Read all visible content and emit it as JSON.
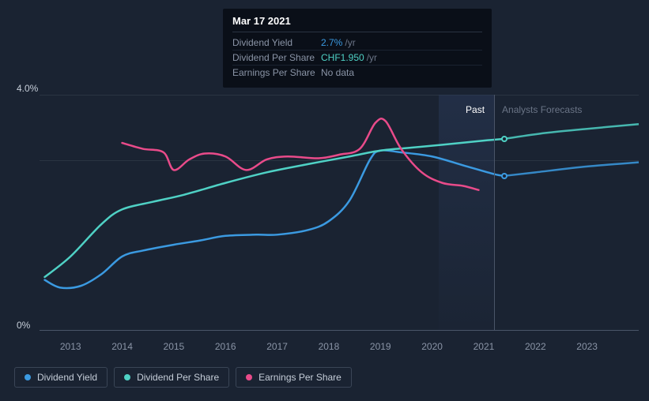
{
  "tooltip": {
    "date": "Mar 17 2021",
    "rows": [
      {
        "label": "Dividend Yield",
        "value": "2.7%",
        "unit": "/yr",
        "color": "#3b9ae1"
      },
      {
        "label": "Dividend Per Share",
        "value": "CHF1.950",
        "unit": "/yr",
        "color": "#4fd1c5"
      },
      {
        "label": "Earnings Per Share",
        "value": "No data",
        "unit": "",
        "color": "#8a94a6"
      }
    ]
  },
  "chart": {
    "type": "line",
    "background_color": "#1a2332",
    "grid_color": "#2a3442",
    "y_axis": {
      "max_label": "4.0%",
      "min_label": "0%",
      "max": 4.0,
      "min": 0
    },
    "x_axis": {
      "ticks": [
        "2013",
        "2014",
        "2015",
        "2016",
        "2017",
        "2018",
        "2019",
        "2020",
        "2021",
        "2022",
        "2023"
      ],
      "min": 2012.4,
      "max": 2024.0
    },
    "divider_x": 2021.2,
    "past_label": "Past",
    "forecast_label": "Analysts Forecasts",
    "past_label_color": "#ffffff",
    "forecast_label_color": "#6a7486",
    "series": [
      {
        "name": "Dividend Yield",
        "color": "#3b9ae1",
        "points": [
          [
            2012.5,
            0.85
          ],
          [
            2012.8,
            0.72
          ],
          [
            2013.2,
            0.75
          ],
          [
            2013.6,
            0.95
          ],
          [
            2014.0,
            1.25
          ],
          [
            2014.4,
            1.35
          ],
          [
            2015.0,
            1.45
          ],
          [
            2015.5,
            1.52
          ],
          [
            2016.0,
            1.6
          ],
          [
            2016.6,
            1.62
          ],
          [
            2017.0,
            1.62
          ],
          [
            2017.6,
            1.7
          ],
          [
            2018.0,
            1.85
          ],
          [
            2018.4,
            2.2
          ],
          [
            2018.8,
            2.9
          ],
          [
            2019.0,
            3.05
          ],
          [
            2019.4,
            3.02
          ],
          [
            2020.0,
            2.95
          ],
          [
            2020.6,
            2.8
          ],
          [
            2021.2,
            2.65
          ],
          [
            2021.4,
            2.62
          ]
        ],
        "marker_at": [
          2021.4,
          2.62
        ],
        "forecast_points": [
          [
            2021.4,
            2.62
          ],
          [
            2022.0,
            2.68
          ],
          [
            2023.0,
            2.78
          ],
          [
            2024.0,
            2.85
          ]
        ]
      },
      {
        "name": "Dividend Per Share",
        "color": "#4fd1c5",
        "points": [
          [
            2012.5,
            0.9
          ],
          [
            2013.0,
            1.25
          ],
          [
            2013.6,
            1.8
          ],
          [
            2014.0,
            2.05
          ],
          [
            2014.6,
            2.18
          ],
          [
            2015.2,
            2.3
          ],
          [
            2016.0,
            2.5
          ],
          [
            2016.8,
            2.68
          ],
          [
            2017.6,
            2.82
          ],
          [
            2018.4,
            2.95
          ],
          [
            2019.0,
            3.05
          ],
          [
            2019.6,
            3.1
          ],
          [
            2020.2,
            3.15
          ],
          [
            2021.0,
            3.22
          ],
          [
            2021.4,
            3.25
          ]
        ],
        "marker_at": [
          2021.4,
          3.25
        ],
        "forecast_points": [
          [
            2021.4,
            3.25
          ],
          [
            2022.2,
            3.35
          ],
          [
            2023.0,
            3.42
          ],
          [
            2024.0,
            3.5
          ]
        ]
      },
      {
        "name": "Earnings Per Share",
        "color": "#e94b8a",
        "points": [
          [
            2014.0,
            3.18
          ],
          [
            2014.4,
            3.08
          ],
          [
            2014.8,
            3.02
          ],
          [
            2015.0,
            2.72
          ],
          [
            2015.3,
            2.9
          ],
          [
            2015.6,
            3.0
          ],
          [
            2016.0,
            2.95
          ],
          [
            2016.4,
            2.72
          ],
          [
            2016.8,
            2.9
          ],
          [
            2017.2,
            2.95
          ],
          [
            2017.8,
            2.92
          ],
          [
            2018.2,
            2.98
          ],
          [
            2018.6,
            3.08
          ],
          [
            2018.9,
            3.52
          ],
          [
            2019.1,
            3.55
          ],
          [
            2019.4,
            3.08
          ],
          [
            2019.8,
            2.68
          ],
          [
            2020.2,
            2.5
          ],
          [
            2020.6,
            2.45
          ],
          [
            2020.9,
            2.38
          ]
        ]
      }
    ]
  },
  "legend": [
    {
      "label": "Dividend Yield",
      "color": "#3b9ae1"
    },
    {
      "label": "Dividend Per Share",
      "color": "#4fd1c5"
    },
    {
      "label": "Earnings Per Share",
      "color": "#e94b8a"
    }
  ]
}
